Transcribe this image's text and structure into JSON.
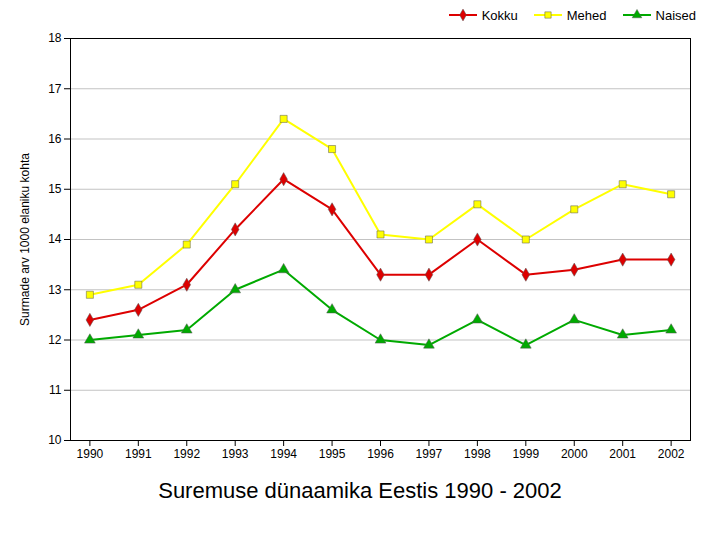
{
  "chart_data": {
    "type": "line",
    "title": "Suremuse dünaamika Eestis 1990 - 2002",
    "y_label": "Surmade arv 1000 elaniku kohta",
    "x": [
      1990,
      1991,
      1992,
      1993,
      1994,
      1995,
      1996,
      1997,
      1998,
      1999,
      2000,
      2001,
      2002
    ],
    "series": [
      {
        "name": "Kokku",
        "color": "#dd0000",
        "marker": "diamond",
        "values": [
          12.4,
          12.6,
          13.1,
          14.2,
          15.2,
          14.6,
          13.3,
          13.3,
          14.0,
          13.3,
          13.4,
          13.6,
          13.6
        ]
      },
      {
        "name": "Mehed",
        "color": "#ffff00",
        "marker": "square",
        "values": [
          12.9,
          13.1,
          13.9,
          15.1,
          16.4,
          15.8,
          14.1,
          14.0,
          14.7,
          14.0,
          14.6,
          15.1,
          14.9
        ]
      },
      {
        "name": "Naised",
        "color": "#00aa00",
        "marker": "triangle",
        "values": [
          12.0,
          12.1,
          12.2,
          13.0,
          13.4,
          12.6,
          12.0,
          11.9,
          12.4,
          11.9,
          12.4,
          12.1,
          12.2
        ]
      }
    ],
    "xlim": [
      1989.6,
      2002.4
    ],
    "xticks": [
      1990,
      1991,
      1992,
      1993,
      1994,
      1995,
      1996,
      1997,
      1998,
      1999,
      2000,
      2001,
      2002
    ],
    "ylim": [
      10,
      18
    ],
    "yticks": [
      10,
      11,
      12,
      13,
      14,
      15,
      16,
      17,
      18
    ],
    "grid": true,
    "legend": "upper right"
  }
}
